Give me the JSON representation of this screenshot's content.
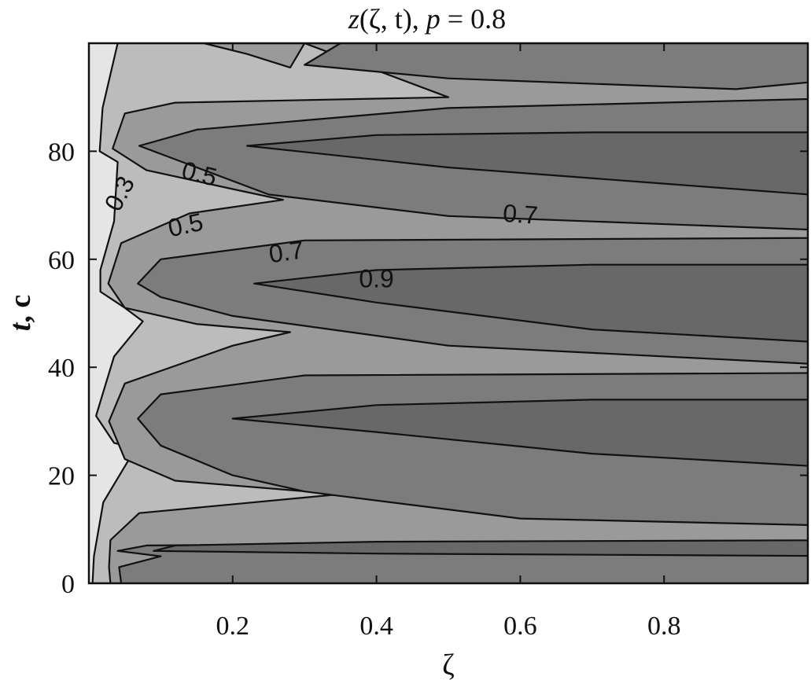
{
  "chart_data": {
    "type": "contour",
    "title": {
      "func": "z",
      "args": "(ζ, t), ",
      "param": "p",
      "eq": " = 0.8"
    },
    "xlabel": "ζ",
    "ylabel": {
      "var": "t",
      "unit": ", c"
    },
    "xlim": [
      0,
      1
    ],
    "ylim": [
      0,
      100
    ],
    "x_ticks": [
      {
        "value": 0.2,
        "label": "0.2"
      },
      {
        "value": 0.4,
        "label": "0.4"
      },
      {
        "value": 0.6,
        "label": "0.6"
      },
      {
        "value": 0.8,
        "label": "0.8"
      }
    ],
    "y_ticks": [
      {
        "value": 0,
        "label": "0"
      },
      {
        "value": 20,
        "label": "20"
      },
      {
        "value": 40,
        "label": "40"
      },
      {
        "value": 60,
        "label": "60"
      },
      {
        "value": 80,
        "label": "80"
      }
    ],
    "levels": [
      0.3,
      0.5,
      0.7,
      0.9
    ],
    "colors": {
      "below_0.3": "#e5e5e5",
      "0.3-0.5": "#bcbcbc",
      "0.5-0.7": "#9a9a9a",
      "0.7-0.9": "#7c7c7c",
      "above_0.9": "#686868"
    },
    "contour_labels": [
      {
        "text": "0.3",
        "x": 0.045,
        "t": 72,
        "angle": -62
      },
      {
        "text": "0.5",
        "x": 0.153,
        "t": 75.5,
        "angle": 14
      },
      {
        "text": "0.5",
        "x": 0.135,
        "t": 66,
        "angle": -12
      },
      {
        "text": "0.7",
        "x": 0.275,
        "t": 61,
        "angle": -8
      },
      {
        "text": "0.9",
        "x": 0.4,
        "t": 56,
        "angle": 0
      },
      {
        "text": "0.7",
        "x": 0.6,
        "t": 68,
        "angle": 4
      }
    ],
    "grid": false
  }
}
